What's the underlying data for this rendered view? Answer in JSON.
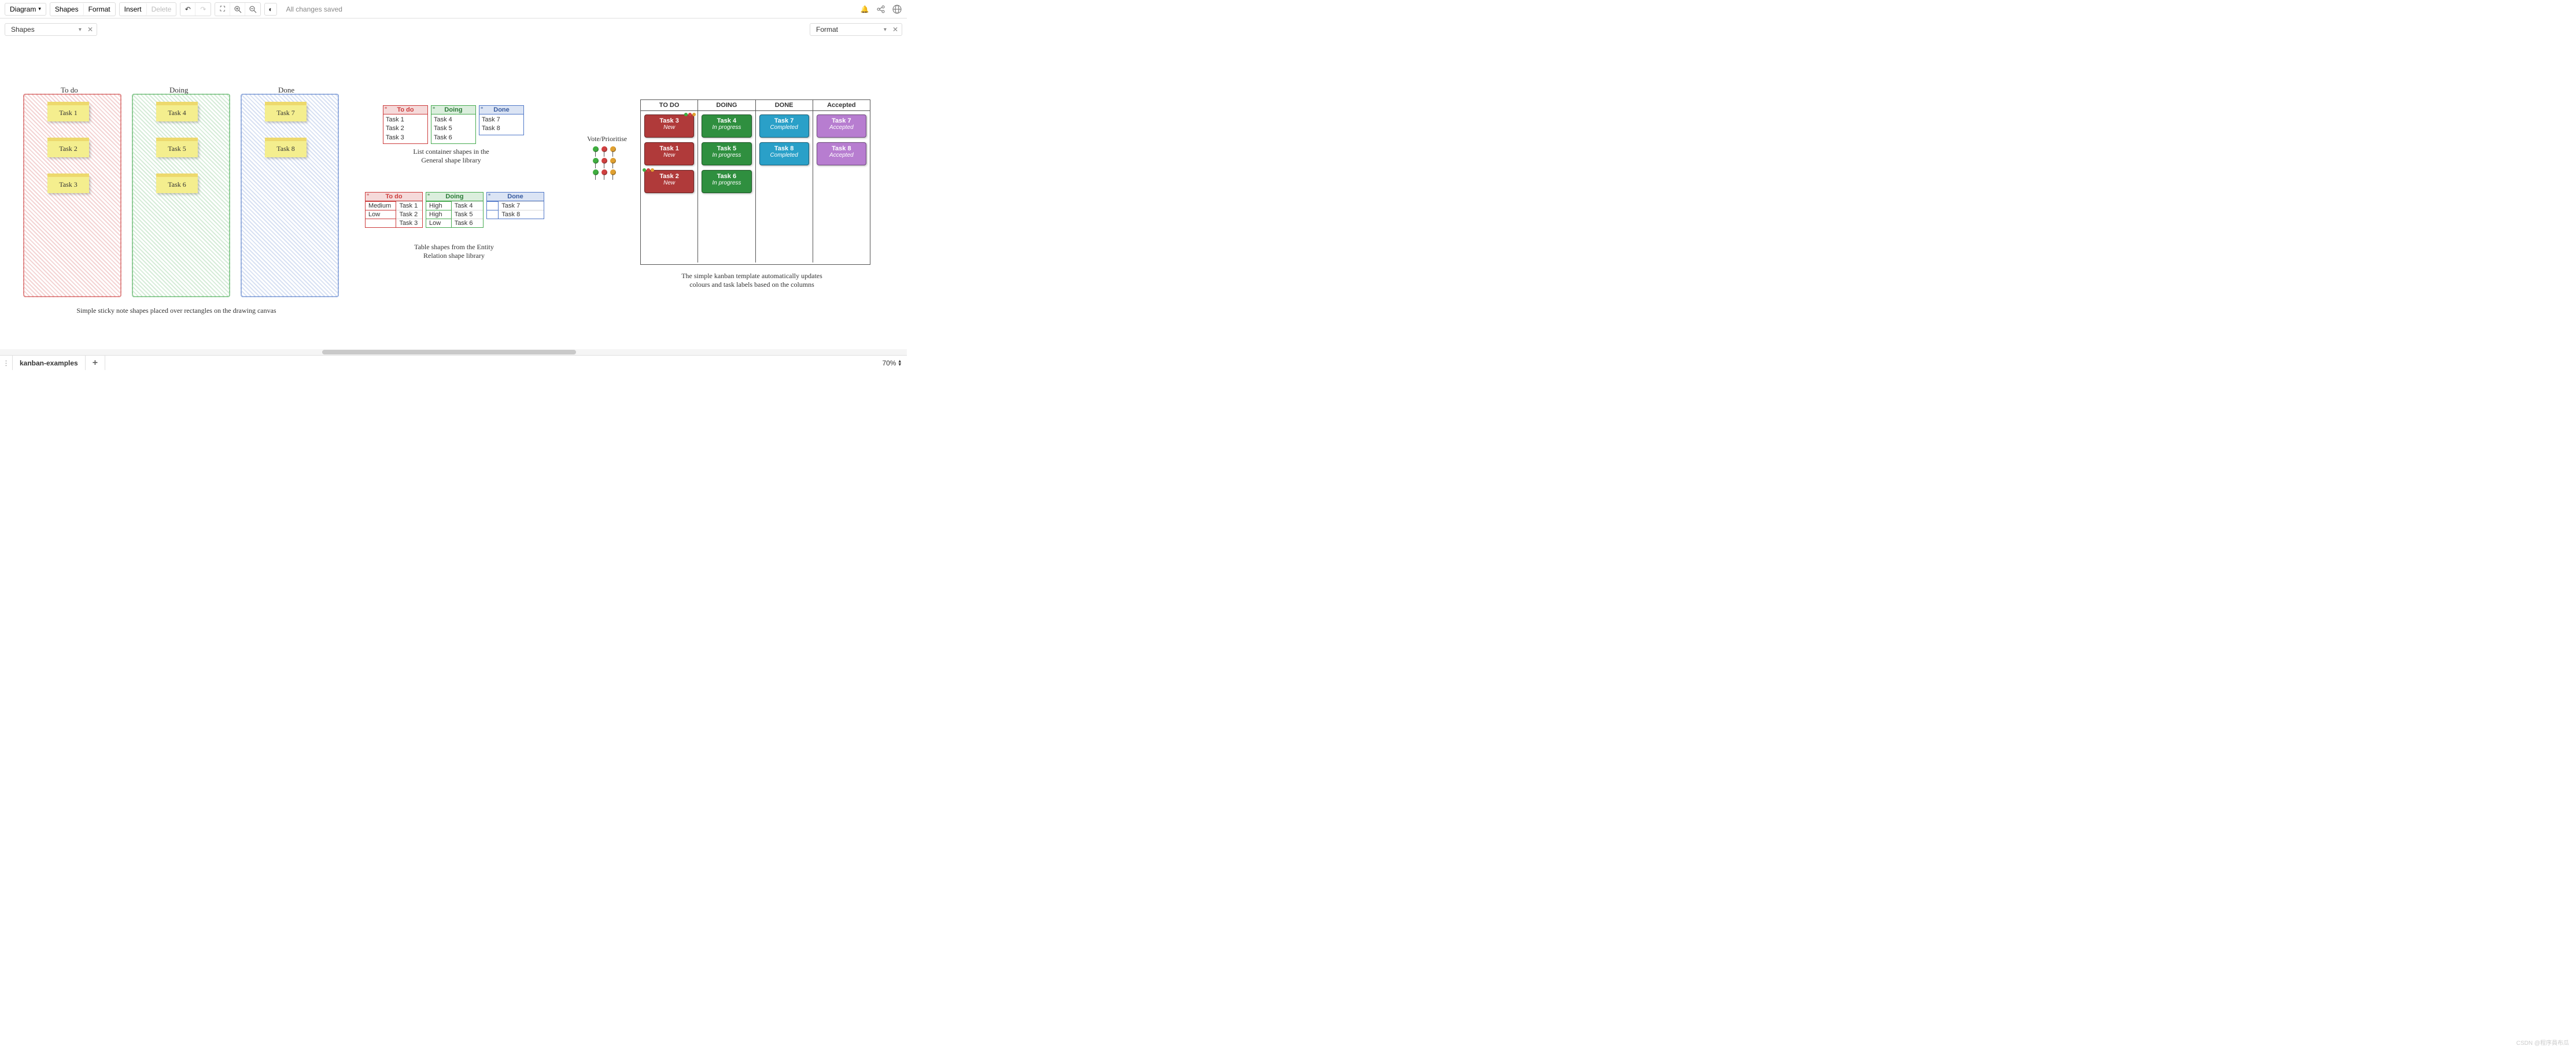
{
  "toolbar": {
    "diagram": "Diagram",
    "shapes": "Shapes",
    "format": "Format",
    "insert": "Insert",
    "delete": "Delete",
    "status": "All changes saved"
  },
  "panels": {
    "left": "Shapes",
    "right": "Format"
  },
  "tabs": {
    "page1": "kanban-examples",
    "zoom": "70%"
  },
  "sticky_board": {
    "columns": [
      {
        "title": "To do",
        "class": "hatch-red",
        "tasks": [
          "Task 1",
          "Task 2",
          "Task 3"
        ]
      },
      {
        "title": "Doing",
        "class": "hatch-green",
        "tasks": [
          "Task 4",
          "Task 5",
          "Task 6"
        ]
      },
      {
        "title": "Done",
        "class": "hatch-blue",
        "tasks": [
          "Task 7",
          "Task 8"
        ]
      }
    ],
    "caption": "Simple sticky note shapes placed over rectangles on the drawing canvas"
  },
  "lists": {
    "boxes": [
      {
        "title": "To do",
        "items": [
          "Task 1",
          "Task 2",
          "Task 3"
        ]
      },
      {
        "title": "Doing",
        "items": [
          "Task 4",
          "Task 5",
          "Task 6"
        ]
      },
      {
        "title": "Done",
        "items": [
          "Task 7",
          "Task 8"
        ]
      }
    ],
    "caption": "List container shapes in the General shape library"
  },
  "tables": {
    "boxes": [
      {
        "title": "To do",
        "rows": [
          [
            "Medium",
            "Task 1"
          ],
          [
            "Low",
            "Task 2"
          ],
          [
            "",
            "Task 3"
          ]
        ]
      },
      {
        "title": "Doing",
        "rows": [
          [
            "High",
            "Task 4"
          ],
          [
            "High",
            "Task 5"
          ],
          [
            "Low",
            "Task 6"
          ]
        ]
      },
      {
        "title": "Done",
        "rows": [
          [
            "",
            "Task 7"
          ],
          [
            "",
            "Task 8"
          ]
        ]
      }
    ],
    "caption": "Table shapes from the Entity Relation shape library"
  },
  "vote_label": "Vote/Prioritise",
  "template": {
    "heads": [
      "TO DO",
      "DOING",
      "DONE",
      "Accepted"
    ],
    "cols": [
      [
        {
          "t": "Task 3",
          "s": "New",
          "c": "#b03a3a",
          "dots": "tr"
        },
        {
          "t": "Task 1",
          "s": "New",
          "c": "#b03a3a"
        },
        {
          "t": "Task 2",
          "s": "New",
          "c": "#b03a3a",
          "dots": "tl"
        }
      ],
      [
        {
          "t": "Task 4",
          "s": "In progress",
          "c": "#2f8f3f"
        },
        {
          "t": "Task 5",
          "s": "In progress",
          "c": "#2f8f3f"
        },
        {
          "t": "Task 6",
          "s": "In progress",
          "c": "#2f8f3f"
        }
      ],
      [
        {
          "t": "Task 7",
          "s": "Completed",
          "c": "#2aa0c8"
        },
        {
          "t": "Task 8",
          "s": "Completed",
          "c": "#2aa0c8"
        }
      ],
      [
        {
          "t": "Task 7",
          "s": "Accepted",
          "c": "#b77dd0"
        },
        {
          "t": "Task 8",
          "s": "Accepted",
          "c": "#b77dd0"
        }
      ]
    ],
    "caption": "The simple kanban template automatically updates colours and task labels based on the columns"
  },
  "colors": {
    "pin_green": "#3fae3f",
    "pin_red": "#d04040",
    "pin_orange": "#e0a030"
  }
}
